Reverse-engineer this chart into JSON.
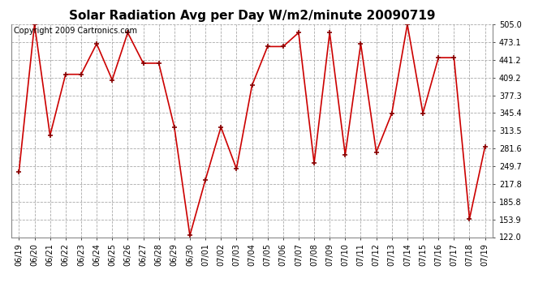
{
  "title": "Solar Radiation Avg per Day W/m2/minute 20090719",
  "copyright_text": "Copyright 2009 Cartronics.com",
  "dates": [
    "06/19",
    "06/20",
    "06/21",
    "06/22",
    "06/23",
    "06/24",
    "06/25",
    "06/26",
    "06/27",
    "06/28",
    "06/29",
    "06/30",
    "07/01",
    "07/02",
    "07/03",
    "07/04",
    "07/05",
    "07/06",
    "07/07",
    "07/08",
    "07/09",
    "07/10",
    "07/11",
    "07/12",
    "07/13",
    "07/14",
    "07/15",
    "07/16",
    "07/17",
    "07/18",
    "07/19"
  ],
  "values": [
    240,
    505,
    305,
    415,
    415,
    470,
    405,
    490,
    435,
    435,
    320,
    125,
    225,
    320,
    245,
    395,
    465,
    465,
    490,
    255,
    490,
    270,
    470,
    275,
    345,
    505,
    345,
    445,
    445,
    155,
    285
  ],
  "line_color": "#cc0000",
  "marker_color": "#880000",
  "bg_color": "#ffffff",
  "plot_bg_color": "#ffffff",
  "grid_color": "#aaaaaa",
  "ylim_min": 122.0,
  "ylim_max": 505.0,
  "ytick_values": [
    122.0,
    153.9,
    185.8,
    217.8,
    249.7,
    281.6,
    313.5,
    345.4,
    377.3,
    409.2,
    441.2,
    473.1,
    505.0
  ],
  "title_fontsize": 11,
  "tick_fontsize": 7,
  "copyright_fontsize": 7
}
